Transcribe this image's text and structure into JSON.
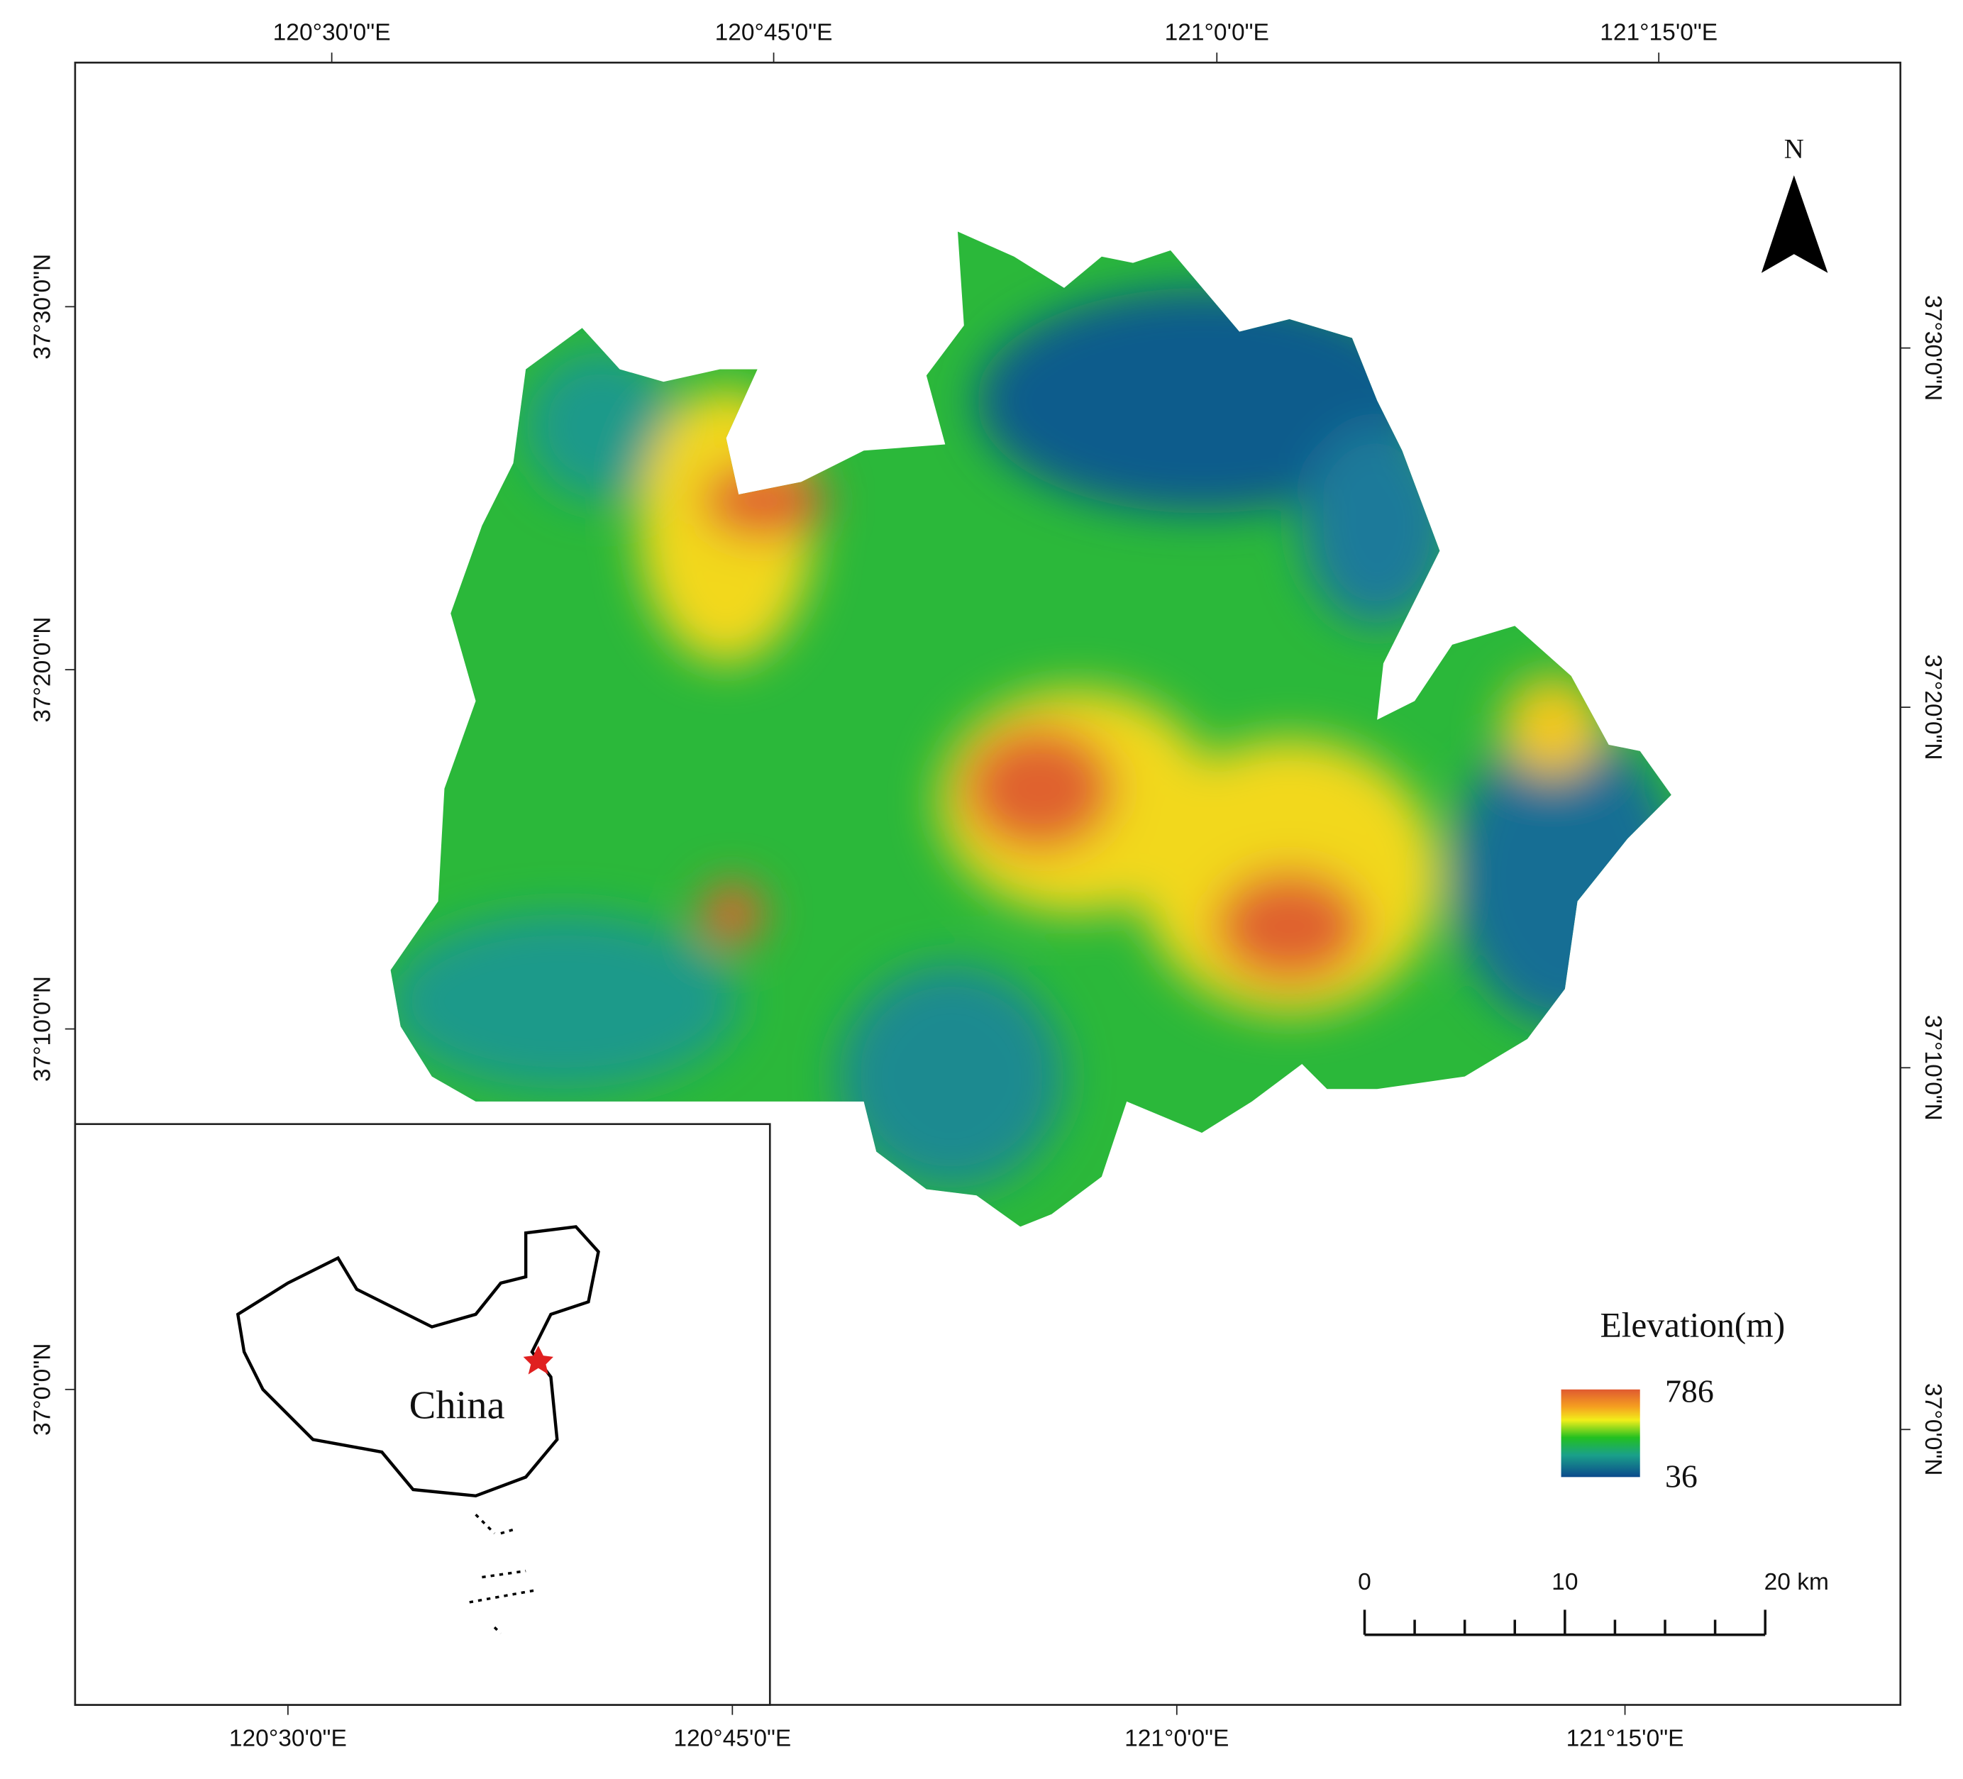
{
  "map": {
    "top_labels": [
      "120°30'0\"E",
      "120°45'0\"E",
      "121°0'0\"E",
      "121°15'0\"E"
    ],
    "bottom_labels": [
      "120°30'0\"E",
      "120°45'0\"E",
      "121°0'0\"E",
      "121°15'0\"E"
    ],
    "left_labels": [
      "37°30'0\"N",
      "37°20'0\"N",
      "37°10'0\"N",
      "37°0'0\"N"
    ],
    "right_labels": [
      "37°30'0\"N",
      "37°20'0\"N",
      "37°10'0\"N",
      "37°0'0\"N"
    ],
    "north_arrow": "N",
    "legend": {
      "title": "Elevation(m)",
      "max": 786,
      "min": 36
    },
    "scale_bar": [
      "0",
      "10",
      "20 km"
    ],
    "inset_label": "China"
  }
}
